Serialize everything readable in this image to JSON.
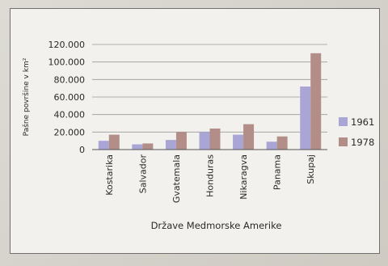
{
  "chart_data": {
    "type": "bar",
    "categories": [
      "Kostarika",
      "Salvador",
      "Gvatemala",
      "Honduras",
      "Nikaragva",
      "Panama",
      "Skupaj"
    ],
    "series": [
      {
        "name": "1961",
        "color": "#a9a6d6",
        "values": [
          10000,
          6000,
          11000,
          20000,
          17000,
          9000,
          72000
        ]
      },
      {
        "name": "1978",
        "color": "#b38e88",
        "values": [
          17000,
          7000,
          20000,
          24000,
          29000,
          15000,
          110000
        ]
      }
    ],
    "ylim": [
      0,
      120000
    ],
    "yticks": [
      0,
      20000,
      40000,
      60000,
      80000,
      100000,
      120000
    ],
    "ytick_labels": [
      "0",
      "20.000",
      "40.000",
      "60.000",
      "80.000",
      "100.000",
      "120.000"
    ],
    "ylabel": "Pašne površine v km²",
    "xlabel": "Države Medmorske Amerike",
    "grid": true,
    "legend_position": "right"
  }
}
